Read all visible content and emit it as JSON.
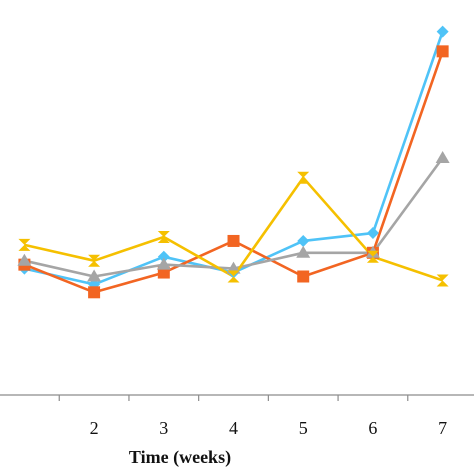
{
  "chart_data": {
    "type": "line",
    "title": "",
    "xlabel": "Time (weeks)",
    "ylabel": "",
    "x": [
      1,
      2,
      3,
      4,
      5,
      6,
      7
    ],
    "x_tick_labels": [
      "2",
      "3",
      "4",
      "5",
      "6",
      "7"
    ],
    "xlim": [
      0.65,
      7.45
    ],
    "ylim": [
      0,
      10
    ],
    "grid": false,
    "legend": "none",
    "series": [
      {
        "color": "#4FC3F7",
        "marker": "diamond",
        "values": [
          3.2,
          2.8,
          3.5,
          3.1,
          3.9,
          4.1,
          9.2
        ]
      },
      {
        "color": "#F26522",
        "marker": "square",
        "values": [
          3.3,
          2.6,
          3.1,
          3.9,
          3.0,
          3.6,
          8.7
        ]
      },
      {
        "color": "#A5A5A5",
        "marker": "triangle",
        "values": [
          3.4,
          3.0,
          3.3,
          3.2,
          3.6,
          3.6,
          6.0
        ]
      },
      {
        "color": "#F5C000",
        "marker": "bowtie",
        "values": [
          3.8,
          3.4,
          4.0,
          3.0,
          5.5,
          3.5,
          2.9
        ]
      }
    ]
  }
}
